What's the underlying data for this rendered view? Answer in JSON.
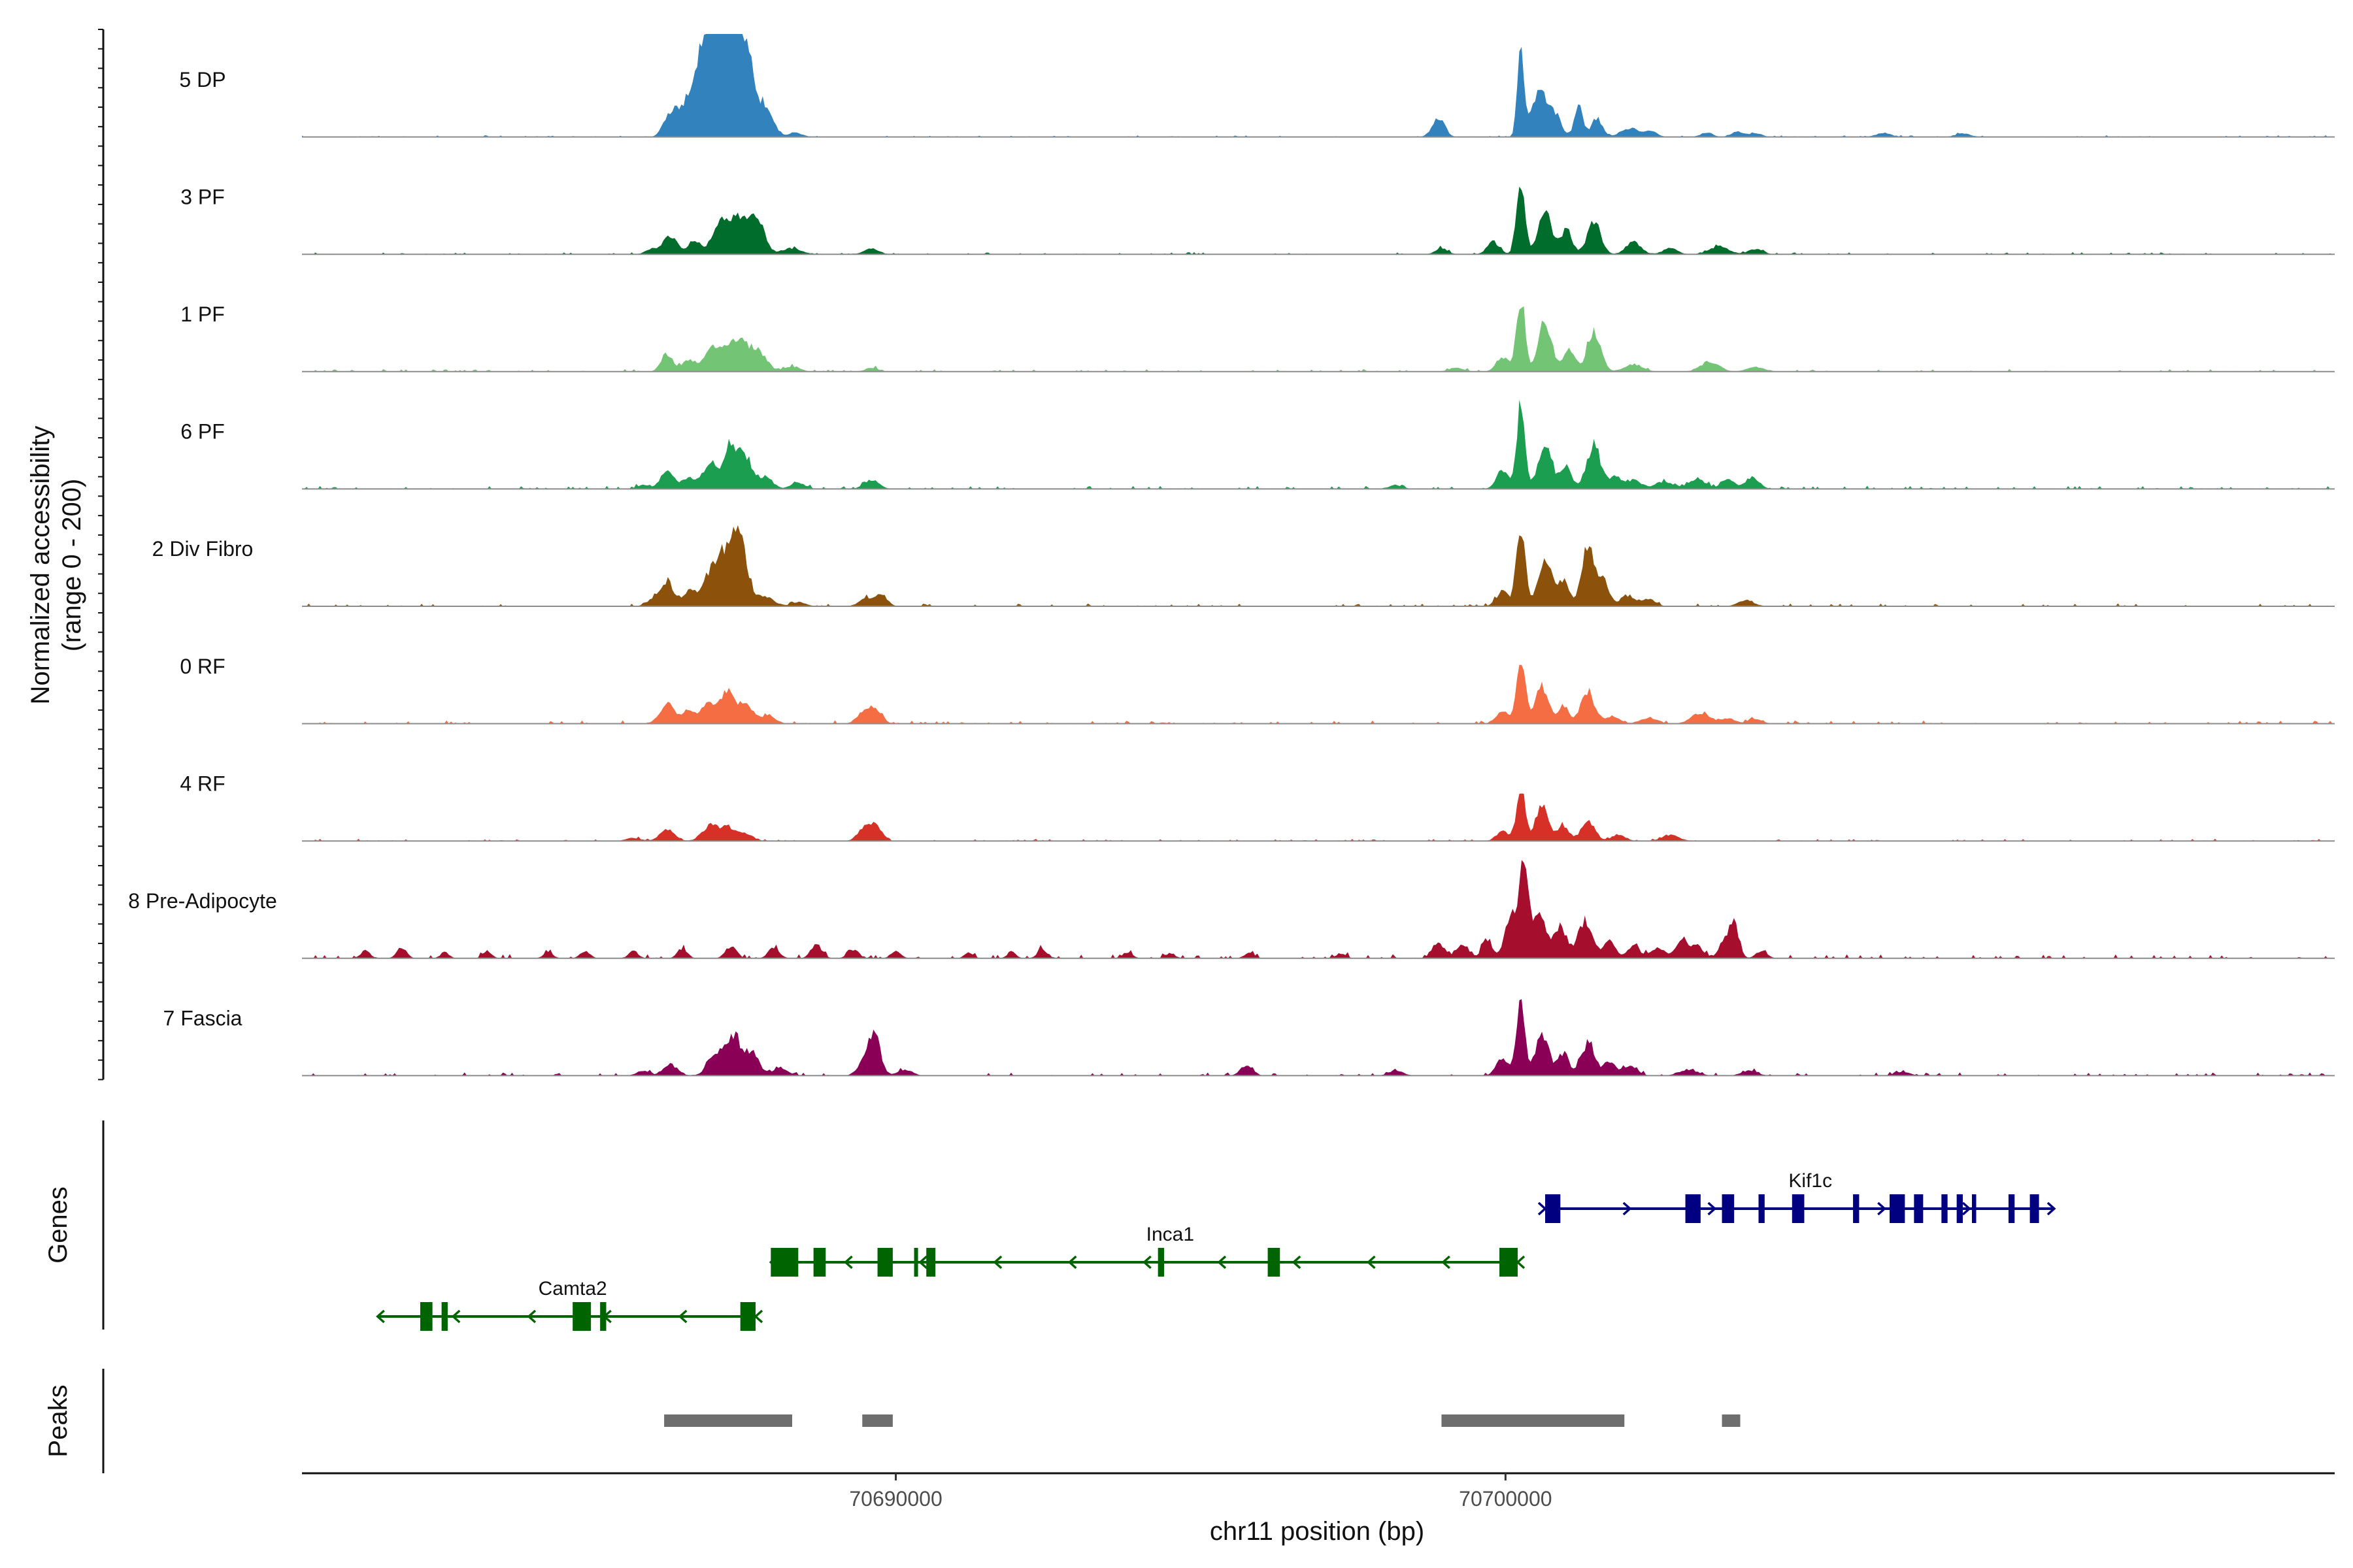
{
  "chart_data": {
    "type": "area",
    "title": "",
    "ylabel": [
      "Normalized accessibility",
      "(range 0 - 200)"
    ],
    "xlabel": "chr11 position (bp)",
    "chrom": "chr11",
    "xlim": [
      70680260,
      70713600
    ],
    "ylim": [
      0,
      200
    ],
    "x_ticks": [
      70690000,
      70700000
    ],
    "x_tick_labels": [
      "70690000",
      "70700000"
    ],
    "tracks": [
      {
        "name": "5 DP",
        "color": "#3182bd",
        "peaks": [
          [
            70686250,
            30,
            90
          ],
          [
            70686450,
            45,
            130
          ],
          [
            70686900,
            130,
            200
          ],
          [
            70687150,
            180,
            260
          ],
          [
            70687500,
            155,
            170
          ],
          [
            70687900,
            50,
            110
          ],
          [
            70688350,
            8,
            120
          ],
          [
            70698900,
            40,
            100
          ],
          [
            70700250,
            170,
            55
          ],
          [
            70700550,
            85,
            120
          ],
          [
            70700800,
            45,
            110
          ],
          [
            70701200,
            60,
            70
          ],
          [
            70701500,
            38,
            90
          ],
          [
            70702050,
            18,
            150
          ],
          [
            70702400,
            10,
            100
          ],
          [
            70703800,
            10,
            100
          ],
          [
            70704100,
            8,
            100
          ],
          [
            70706200,
            8,
            120
          ],
          [
            70707500,
            7,
            120
          ],
          [
            70703300,
            8,
            100
          ]
        ],
        "noise": 3
      },
      {
        "name": "3 PF",
        "color": "#006d2c",
        "peaks": [
          [
            70686000,
            10,
            100
          ],
          [
            70686300,
            35,
            120
          ],
          [
            70686700,
            25,
            110
          ],
          [
            70687100,
            55,
            120
          ],
          [
            70687450,
            75,
            180
          ],
          [
            70687750,
            50,
            120
          ],
          [
            70688300,
            12,
            150
          ],
          [
            70689600,
            12,
            120
          ],
          [
            70698950,
            12,
            100
          ],
          [
            70699800,
            25,
            100
          ],
          [
            70700250,
            140,
            70
          ],
          [
            70700650,
            85,
            110
          ],
          [
            70701000,
            50,
            90
          ],
          [
            70701450,
            65,
            110
          ],
          [
            70702100,
            25,
            120
          ],
          [
            70702700,
            12,
            120
          ],
          [
            70703500,
            16,
            150
          ],
          [
            70704100,
            10,
            120
          ]
        ],
        "noise": 4
      },
      {
        "name": "1 PF",
        "color": "#74c476",
        "peaks": [
          [
            70686250,
            32,
            100
          ],
          [
            70686600,
            25,
            100
          ],
          [
            70687000,
            45,
            140
          ],
          [
            70687400,
            60,
            180
          ],
          [
            70687750,
            35,
            140
          ],
          [
            70688300,
            10,
            130
          ],
          [
            70689600,
            7,
            110
          ],
          [
            70699200,
            8,
            120
          ],
          [
            70699950,
            30,
            100
          ],
          [
            70700250,
            150,
            70
          ],
          [
            70700650,
            100,
            110
          ],
          [
            70701050,
            45,
            90
          ],
          [
            70701450,
            80,
            110
          ],
          [
            70702100,
            15,
            150
          ],
          [
            70703350,
            20,
            150
          ],
          [
            70704100,
            9,
            150
          ]
        ],
        "noise": 5
      },
      {
        "name": "6 PF",
        "color": "#1b9e50",
        "peaks": [
          [
            70685850,
            8,
            100
          ],
          [
            70686250,
            35,
            110
          ],
          [
            70686600,
            22,
            100
          ],
          [
            70686950,
            50,
            120
          ],
          [
            70687300,
            90,
            120
          ],
          [
            70687550,
            55,
            100
          ],
          [
            70687850,
            25,
            120
          ],
          [
            70688400,
            12,
            120
          ],
          [
            70689600,
            18,
            120
          ],
          [
            70699950,
            38,
            100
          ],
          [
            70700250,
            165,
            70
          ],
          [
            70700650,
            95,
            110
          ],
          [
            70701000,
            45,
            90
          ],
          [
            70701450,
            90,
            110
          ],
          [
            70701800,
            25,
            100
          ],
          [
            70702100,
            18,
            130
          ],
          [
            70702600,
            15,
            140
          ],
          [
            70703150,
            18,
            150
          ],
          [
            70703650,
            20,
            100
          ],
          [
            70704050,
            24,
            110
          ],
          [
            70698200,
            8,
            110
          ]
        ],
        "noise": 6
      },
      {
        "name": "2 Div Fibro",
        "color": "#8c510a",
        "peaks": [
          [
            70686000,
            12,
            100
          ],
          [
            70686250,
            50,
            110
          ],
          [
            70686600,
            30,
            100
          ],
          [
            70687000,
            75,
            150
          ],
          [
            70687300,
            120,
            130
          ],
          [
            70687500,
            80,
            110
          ],
          [
            70687850,
            20,
            130
          ],
          [
            70688400,
            8,
            120
          ],
          [
            70689500,
            15,
            110
          ],
          [
            70689750,
            25,
            100
          ],
          [
            70699950,
            30,
            100
          ],
          [
            70700250,
            165,
            70
          ],
          [
            70700650,
            95,
            110
          ],
          [
            70700950,
            50,
            90
          ],
          [
            70701350,
            120,
            100
          ],
          [
            70701600,
            55,
            90
          ],
          [
            70702000,
            22,
            120
          ],
          [
            70702350,
            15,
            110
          ],
          [
            70703950,
            12,
            130
          ]
        ],
        "noise": 6
      },
      {
        "name": "0 RF",
        "color": "#f46d43",
        "peaks": [
          [
            70686250,
            40,
            120
          ],
          [
            70686600,
            25,
            110
          ],
          [
            70686950,
            40,
            130
          ],
          [
            70687250,
            60,
            120
          ],
          [
            70687550,
            40,
            110
          ],
          [
            70687900,
            15,
            120
          ],
          [
            70689450,
            20,
            100
          ],
          [
            70689650,
            32,
            110
          ],
          [
            70699950,
            25,
            100
          ],
          [
            70700250,
            140,
            70
          ],
          [
            70700600,
            75,
            110
          ],
          [
            70700950,
            35,
            90
          ],
          [
            70701350,
            65,
            110
          ],
          [
            70701750,
            15,
            120
          ],
          [
            70702350,
            12,
            130
          ],
          [
            70703200,
            22,
            150
          ],
          [
            70703650,
            10,
            120
          ],
          [
            70704100,
            9,
            110
          ]
        ],
        "noise": 6
      },
      {
        "name": "4 RF",
        "color": "#d73027",
        "peaks": [
          [
            70685700,
            6,
            120
          ],
          [
            70686250,
            22,
            120
          ],
          [
            70686950,
            30,
            130
          ],
          [
            70687250,
            28,
            120
          ],
          [
            70687550,
            15,
            110
          ],
          [
            70689450,
            18,
            100
          ],
          [
            70689650,
            35,
            110
          ],
          [
            70699950,
            20,
            100
          ],
          [
            70700250,
            105,
            70
          ],
          [
            70700600,
            70,
            110
          ],
          [
            70700950,
            30,
            90
          ],
          [
            70701350,
            40,
            110
          ],
          [
            70701850,
            12,
            120
          ],
          [
            70702700,
            12,
            140
          ]
        ],
        "noise": 4
      },
      {
        "name": "8 Pre-Adipocyte",
        "color": "#a50f2d",
        "peaks": [
          [
            70681300,
            15,
            80
          ],
          [
            70681900,
            22,
            80
          ],
          [
            70682600,
            12,
            70
          ],
          [
            70683300,
            15,
            70
          ],
          [
            70684300,
            12,
            80
          ],
          [
            70684900,
            15,
            80
          ],
          [
            70685700,
            14,
            80
          ],
          [
            70686500,
            20,
            80
          ],
          [
            70687300,
            25,
            90
          ],
          [
            70688000,
            22,
            90
          ],
          [
            70688700,
            28,
            90
          ],
          [
            70689300,
            18,
            90
          ],
          [
            70690000,
            15,
            80
          ],
          [
            70691200,
            12,
            70
          ],
          [
            70691900,
            14,
            70
          ],
          [
            70692400,
            18,
            80
          ],
          [
            70693800,
            12,
            80
          ],
          [
            70694500,
            10,
            80
          ],
          [
            70695800,
            12,
            80
          ],
          [
            70697300,
            10,
            80
          ],
          [
            70698900,
            30,
            100
          ],
          [
            70699300,
            28,
            100
          ],
          [
            70699700,
            40,
            80
          ],
          [
            70700100,
            90,
            100
          ],
          [
            70700300,
            170,
            70
          ],
          [
            70700550,
            100,
            110
          ],
          [
            70700900,
            65,
            100
          ],
          [
            70701300,
            75,
            120
          ],
          [
            70701700,
            35,
            100
          ],
          [
            70702100,
            25,
            100
          ],
          [
            70702500,
            22,
            120
          ],
          [
            70702900,
            40,
            100
          ],
          [
            70703150,
            25,
            90
          ],
          [
            70703600,
            30,
            100
          ],
          [
            70703750,
            65,
            80
          ],
          [
            70704200,
            15,
            90
          ]
        ],
        "noise": 8
      },
      {
        "name": "7 Fascia",
        "color": "#8b0057",
        "peaks": [
          [
            70685850,
            10,
            100
          ],
          [
            70686300,
            22,
            120
          ],
          [
            70687050,
            45,
            130
          ],
          [
            70687350,
            75,
            120
          ],
          [
            70687650,
            45,
            110
          ],
          [
            70688100,
            15,
            130
          ],
          [
            70689450,
            22,
            100
          ],
          [
            70689650,
            80,
            100
          ],
          [
            70690150,
            12,
            120
          ],
          [
            70695750,
            20,
            100
          ],
          [
            70698200,
            10,
            120
          ],
          [
            70699950,
            35,
            100
          ],
          [
            70700250,
            140,
            70
          ],
          [
            70700600,
            85,
            110
          ],
          [
            70700950,
            45,
            90
          ],
          [
            70701350,
            65,
            110
          ],
          [
            70701700,
            25,
            100
          ],
          [
            70702050,
            18,
            120
          ],
          [
            70703000,
            12,
            150
          ],
          [
            70704000,
            10,
            130
          ],
          [
            70706500,
            8,
            120
          ]
        ],
        "noise": 6
      }
    ],
    "genes": [
      {
        "name": "Kif1c",
        "strand": "+",
        "color": "#000080",
        "start": 70700650,
        "end": 70709000,
        "row": 0,
        "label_x": 70705000,
        "exons": [
          [
            70700650,
            70700900
          ],
          [
            70702950,
            70703200
          ],
          [
            70703550,
            70703750
          ],
          [
            70704150,
            70704250
          ],
          [
            70704700,
            70704900
          ],
          [
            70705700,
            70705800
          ],
          [
            70706300,
            70706550
          ],
          [
            70706700,
            70706850
          ],
          [
            70707150,
            70707250
          ],
          [
            70707400,
            70707500
          ],
          [
            70707650,
            70707720
          ],
          [
            70708250,
            70708350
          ],
          [
            70708600,
            70708750
          ]
        ]
      },
      {
        "name": "Inca1",
        "strand": "-",
        "color": "#006400",
        "start": 70687950,
        "end": 70700200,
        "row": 1,
        "label_x": 70694500,
        "exons": [
          [
            70687950,
            70688400
          ],
          [
            70688650,
            70688850
          ],
          [
            70689700,
            70689950
          ],
          [
            70690300,
            70690350
          ],
          [
            70690500,
            70690650
          ],
          [
            70694300,
            70694400
          ],
          [
            70696100,
            70696300
          ],
          [
            70699900,
            70700200
          ]
        ]
      },
      {
        "name": "Camta2",
        "strand": "-",
        "color": "#006400",
        "start": 70681500,
        "end": 70687700,
        "row": 2,
        "label_x": 70684700,
        "exons": [
          [
            70682200,
            70682400
          ],
          [
            70682550,
            70682650
          ],
          [
            70684700,
            70685000
          ],
          [
            70685150,
            70685250
          ],
          [
            70687450,
            70687700
          ]
        ]
      }
    ],
    "peaks": [
      [
        70686200,
        70688300
      ],
      [
        70689450,
        70689950
      ],
      [
        70698950,
        70701950
      ],
      [
        70703550,
        70703850
      ]
    ]
  }
}
